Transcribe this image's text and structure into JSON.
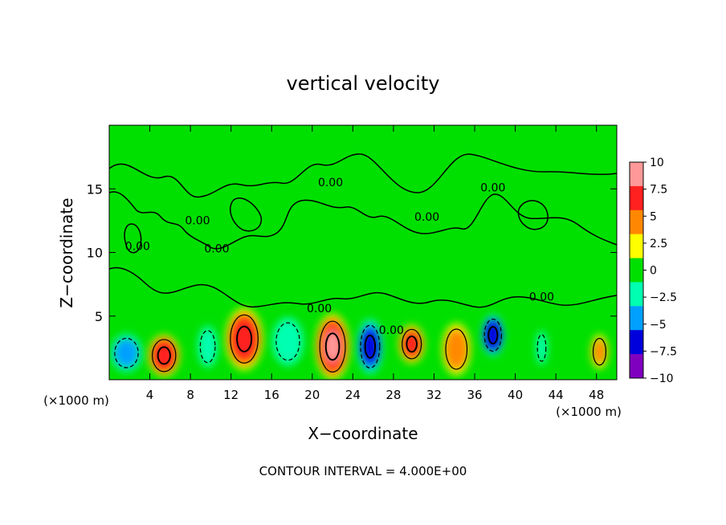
{
  "chart_data": {
    "type": "heatmap",
    "title": "vertical velocity",
    "xlabel": "X−coordinate",
    "ylabel": "Z−coordinate",
    "x_unit": "(×1000 m)",
    "x_unit_right": "(×1000 m)",
    "footer": "CONTOUR INTERVAL = 4.000E+00",
    "xlim": [
      0,
      50
    ],
    "ylim": [
      0,
      20
    ],
    "x_ticks": [
      4,
      8,
      12,
      16,
      20,
      24,
      28,
      32,
      36,
      40,
      44,
      48
    ],
    "x_tick_labels": [
      "4",
      "8",
      "12",
      "16",
      "20",
      "24",
      "28",
      "32",
      "36",
      "40",
      "44",
      "48"
    ],
    "y_ticks": [
      5,
      10,
      15
    ],
    "y_tick_labels": [
      "5",
      "10",
      "15"
    ],
    "colorbar": {
      "range": [
        -10,
        10
      ],
      "ticks": [
        10,
        7.5,
        5,
        2.5,
        0,
        -2.5,
        -5,
        -7.5,
        -10
      ],
      "tick_labels": [
        "10",
        "7.5",
        "5",
        "2.5",
        "0",
        "−2.5",
        "−5",
        "−7.5",
        "−10"
      ],
      "colors": [
        "#ff9999",
        "#ff2020",
        "#ff8800",
        "#ffff00",
        "#00e000",
        "#00ffb0",
        "#00a0ff",
        "#0000dd",
        "#8000c0"
      ]
    },
    "contour_labels": [
      {
        "text": "0.00",
        "x": 21.8,
        "z": 15.2
      },
      {
        "text": "0.00",
        "x": 37.8,
        "z": 14.8
      },
      {
        "text": "0.00",
        "x": 8.7,
        "z": 12.2
      },
      {
        "text": "0.00",
        "x": 10.6,
        "z": 10.0
      },
      {
        "text": "0.00",
        "x": 31.3,
        "z": 12.5
      },
      {
        "text": "0.00",
        "x": 2.8,
        "z": 10.2
      },
      {
        "text": "0.00",
        "x": 20.7,
        "z": 5.3
      },
      {
        "text": "0.00",
        "x": 27.8,
        "z": 3.6
      },
      {
        "text": "0.00",
        "x": 42.6,
        "z": 6.2
      }
    ],
    "features": [
      {
        "kind": "updraft",
        "x": 5.4,
        "z": 1.9,
        "peak": 9.0,
        "sx": 1.1,
        "sz": 1.2
      },
      {
        "kind": "updraft",
        "x": 13.3,
        "z": 3.2,
        "peak": 8.5,
        "sx": 1.3,
        "sz": 1.8
      },
      {
        "kind": "updraft",
        "x": 22.0,
        "z": 2.6,
        "peak": 10.0,
        "sx": 1.2,
        "sz": 1.9
      },
      {
        "kind": "updraft",
        "x": 29.8,
        "z": 2.8,
        "peak": 7.5,
        "sx": 0.9,
        "sz": 1.1
      },
      {
        "kind": "updraft",
        "x": 34.2,
        "z": 2.4,
        "peak": 6.0,
        "sx": 1.0,
        "sz": 1.5
      },
      {
        "kind": "updraft",
        "x": 48.3,
        "z": 2.2,
        "peak": 5.0,
        "sx": 0.6,
        "sz": 1.0
      },
      {
        "kind": "downdraft",
        "x": 1.7,
        "z": 2.1,
        "peak": -5.0,
        "sx": 1.1,
        "sz": 1.1
      },
      {
        "kind": "downdraft",
        "x": 9.7,
        "z": 2.6,
        "peak": -2.5,
        "sx": 0.7,
        "sz": 1.2
      },
      {
        "kind": "downdraft",
        "x": 17.6,
        "z": 3.0,
        "peak": -4.0,
        "sx": 1.1,
        "sz": 1.4
      },
      {
        "kind": "downdraft",
        "x": 25.7,
        "z": 2.6,
        "peak": -7.5,
        "sx": 0.9,
        "sz": 1.6
      },
      {
        "kind": "downdraft",
        "x": 37.8,
        "z": 3.5,
        "peak": -9.0,
        "sx": 0.8,
        "sz": 1.2
      },
      {
        "kind": "downdraft",
        "x": 42.6,
        "z": 2.5,
        "peak": -4.0,
        "sx": 0.4,
        "sz": 1.0
      }
    ]
  }
}
